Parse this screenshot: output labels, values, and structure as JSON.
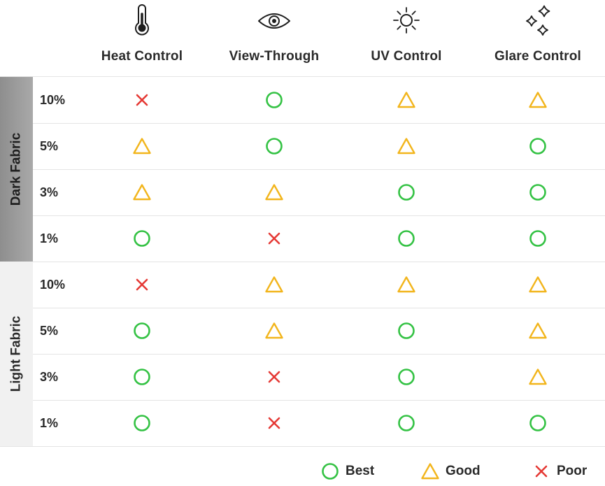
{
  "chart_data": {
    "type": "table",
    "columns": [
      {
        "label": "Heat Control",
        "icon": "thermometer-icon"
      },
      {
        "label": "View-Through",
        "icon": "eye-icon"
      },
      {
        "label": "UV Control",
        "icon": "sun-icon"
      },
      {
        "label": "Glare Control",
        "icon": "sparkle-icon"
      }
    ],
    "groups": [
      {
        "label": "Dark Fabric",
        "rows": [
          {
            "label": "10%",
            "values": [
              "Poor",
              "Best",
              "Good",
              "Good"
            ]
          },
          {
            "label": "5%",
            "values": [
              "Good",
              "Best",
              "Good",
              "Best"
            ]
          },
          {
            "label": "3%",
            "values": [
              "Good",
              "Good",
              "Best",
              "Best"
            ]
          },
          {
            "label": "1%",
            "values": [
              "Best",
              "Poor",
              "Best",
              "Best"
            ]
          }
        ]
      },
      {
        "label": "Light Fabric",
        "rows": [
          {
            "label": "10%",
            "values": [
              "Poor",
              "Good",
              "Good",
              "Good"
            ]
          },
          {
            "label": "5%",
            "values": [
              "Best",
              "Good",
              "Best",
              "Good"
            ]
          },
          {
            "label": "3%",
            "values": [
              "Best",
              "Poor",
              "Best",
              "Good"
            ]
          },
          {
            "label": "1%",
            "values": [
              "Best",
              "Poor",
              "Best",
              "Best"
            ]
          }
        ]
      }
    ],
    "legend": [
      {
        "label": "Best",
        "symbol": "circle",
        "color": "#34c244"
      },
      {
        "label": "Good",
        "symbol": "triangle",
        "color": "#f2b51c"
      },
      {
        "label": "Poor",
        "symbol": "cross",
        "color": "#e53935"
      }
    ]
  }
}
